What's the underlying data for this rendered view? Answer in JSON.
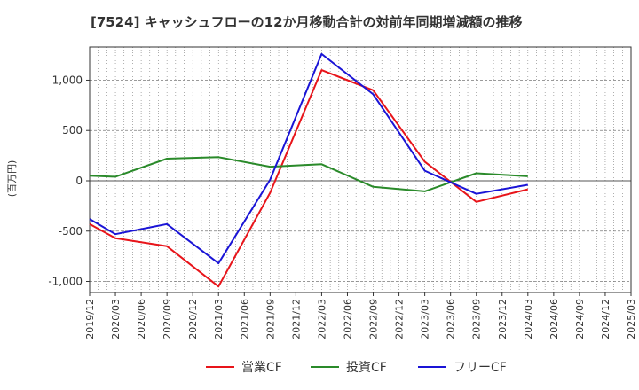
{
  "chart_data": {
    "type": "line",
    "title": "[7524]  キャッシュフローの12か月移動合計の対前年同期増減額の推移",
    "ylabel": "(百万円)",
    "xlabel": "",
    "x": [
      "2019/12",
      "2020/03",
      "2020/06",
      "2020/09",
      "2020/12",
      "2021/03",
      "2021/06",
      "2021/09",
      "2021/12",
      "2022/03",
      "2022/06",
      "2022/09",
      "2022/12",
      "2023/03",
      "2023/06",
      "2023/09",
      "2023/12",
      "2024/03",
      "2024/06",
      "2024/09",
      "2024/12",
      "2025/03"
    ],
    "xlim_index": [
      0,
      21
    ],
    "ylim": [
      -1110,
      1330
    ],
    "yticks": [
      -1000,
      -500,
      0,
      500,
      1000
    ],
    "ytick_labels": [
      "-1,000",
      "-500",
      "0",
      "500",
      "1,000"
    ],
    "grid": true,
    "legend_position": "bottom",
    "series": [
      {
        "name": "営業CF",
        "color": "#e8141a",
        "points": [
          [
            0,
            -430
          ],
          [
            1,
            -570
          ],
          [
            3,
            -650
          ],
          [
            5,
            -1050
          ],
          [
            7,
            -120
          ],
          [
            9,
            1100
          ],
          [
            11,
            900
          ],
          [
            13,
            190
          ],
          [
            15,
            -210
          ],
          [
            17,
            -85
          ]
        ]
      },
      {
        "name": "投資CF",
        "color": "#2a8a2a",
        "points": [
          [
            0,
            50
          ],
          [
            1,
            40
          ],
          [
            3,
            220
          ],
          [
            5,
            235
          ],
          [
            7,
            140
          ],
          [
            9,
            165
          ],
          [
            11,
            -60
          ],
          [
            13,
            -105
          ],
          [
            15,
            75
          ],
          [
            17,
            45
          ]
        ]
      },
      {
        "name": "フリーCF",
        "color": "#1a14d6",
        "points": [
          [
            0,
            -380
          ],
          [
            1,
            -530
          ],
          [
            3,
            -430
          ],
          [
            5,
            -820
          ],
          [
            7,
            10
          ],
          [
            9,
            1260
          ],
          [
            11,
            860
          ],
          [
            13,
            100
          ],
          [
            15,
            -130
          ],
          [
            17,
            -40
          ]
        ]
      }
    ]
  }
}
